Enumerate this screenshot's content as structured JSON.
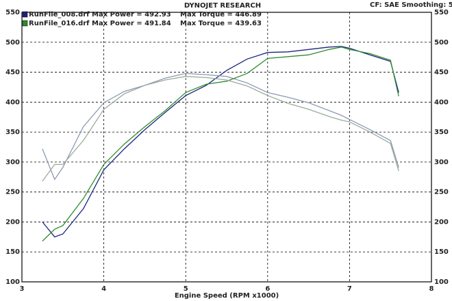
{
  "chart_data": {
    "type": "line",
    "title": "DYNOJET RESEARCH",
    "subtitle": "CF: SAE  Smoothing: 5",
    "x_label": "Engine Speed (RPM x1000)",
    "x": [
      3.25,
      3.4,
      3.5,
      3.75,
      4,
      4.25,
      4.5,
      4.75,
      5,
      5.25,
      5.5,
      5.75,
      6,
      6.25,
      6.5,
      6.75,
      6.9,
      7,
      7.25,
      7.5,
      7.6
    ],
    "series": [
      {
        "name": "RunFile_008.drf Max Power = 492.93",
        "color": "#1a237e",
        "legend": true,
        "values": [
          200,
          175,
          180,
          222,
          287,
          322,
          354,
          383,
          411,
          428,
          453,
          472,
          483,
          484,
          488,
          492,
          493,
          490,
          479,
          468,
          416
        ]
      },
      {
        "name": "Max Torque = 446.89",
        "color": "#8c98b4",
        "legend": true,
        "values": [
          322,
          271,
          291,
          359,
          399,
          418,
          428,
          440,
          448,
          446,
          443,
          432,
          416,
          408,
          399,
          386,
          378,
          371,
          354,
          336,
          291
        ]
      },
      {
        "name": "RunFile_016.drf Max Power = 491.84",
        "color": "#2e8b2e",
        "legend": true,
        "values": [
          168,
          188,
          194,
          239,
          296,
          330,
          359,
          386,
          416,
          430,
          435,
          448,
          473,
          476,
          479,
          488,
          492,
          488,
          481,
          470,
          410
        ]
      },
      {
        "name": "Max Torque = 439.63",
        "color": "#9aaa9a",
        "legend": true,
        "values": [
          268,
          296,
          296,
          336,
          388,
          414,
          428,
          437,
          443,
          441,
          437,
          427,
          411,
          398,
          388,
          376,
          370,
          367,
          350,
          331,
          285
        ]
      }
    ],
    "xlim": [
      3,
      8
    ],
    "xticks": [
      3,
      4,
      5,
      6,
      7,
      8
    ],
    "ylim": [
      100,
      550
    ],
    "yticks": [
      100,
      150,
      200,
      250,
      300,
      350,
      400,
      450,
      500,
      550
    ],
    "grid": true
  }
}
